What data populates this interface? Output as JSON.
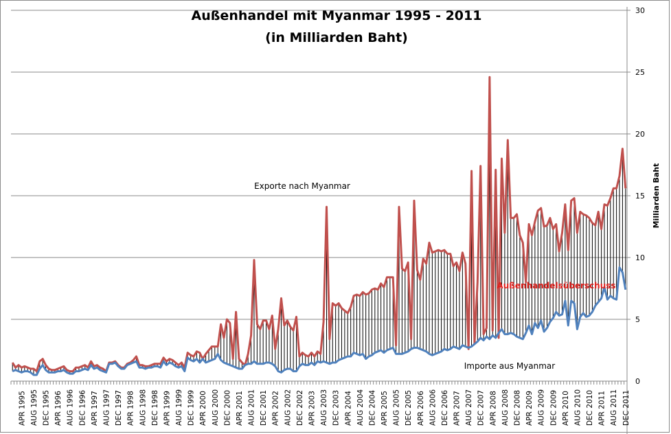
{
  "chart_data": {
    "type": "line",
    "title": "Außenhandel mit Myanmar 1995 - 2011",
    "subtitle": "(in Milliarden Baht)",
    "ylabel": "Milliarden Baht",
    "xlabel": "",
    "ylim": [
      0,
      30
    ],
    "yticks": [
      0,
      5,
      10,
      15,
      20,
      25,
      30
    ],
    "grid": true,
    "y_axis_side": "right",
    "x_start": "JAN 1995",
    "x_end": "DEC 2011",
    "tick_labels": [
      "APR 1995",
      "AUG 1995",
      "DEC 1995",
      "APR 1996",
      "AUG 1996",
      "DEC 1996",
      "APR 1997",
      "AUG 1997",
      "DEC 1997",
      "APR 1998",
      "AUG 1998",
      "DEC 1998",
      "APR 1999",
      "AUG 1999",
      "DEC 1999",
      "APR 2000",
      "AUG 2000",
      "DEC 2000",
      "APR 2001",
      "AUG 2001",
      "DEC 2001",
      "APR 2002",
      "AUG 2002",
      "DEC 2002",
      "APR 2003",
      "AUG 2003",
      "DEC 2003",
      "APR 2004",
      "AUG 2004",
      "DEC 2004",
      "APR 2005",
      "AUG 2005",
      "DEC 2005",
      "APR 2006",
      "AUG 2006",
      "DEC 2006",
      "APR 2007",
      "AUG 2007",
      "DEC 2007",
      "APR 2008",
      "AUG 2008",
      "DEC 2008",
      "APR 2009",
      "AUG 2009",
      "DEC 2009",
      "APR 2010",
      "AUG 2010",
      "DEC 2010",
      "APR 2011",
      "AUG 2011",
      "DEC 2011"
    ],
    "annotations": {
      "exports": "Exporte nach Myanmar",
      "surplus": "Außenhandelsüberschuss",
      "imports": "Importe aus Myanmar"
    },
    "series": [
      {
        "name": "Exporte nach Myanmar",
        "color": "#c0504d",
        "values": [
          1.5,
          1.1,
          1.3,
          1.1,
          1.2,
          1.1,
          1.0,
          1.0,
          0.8,
          1.6,
          1.8,
          1.3,
          1.0,
          0.9,
          0.9,
          1.0,
          1.1,
          1.2,
          0.9,
          0.8,
          0.8,
          1.1,
          1.1,
          1.2,
          1.3,
          1.1,
          1.6,
          1.2,
          1.3,
          1.1,
          1.0,
          0.8,
          1.5,
          1.5,
          1.6,
          1.3,
          1.1,
          1.1,
          1.4,
          1.5,
          1.7,
          2.0,
          1.3,
          1.3,
          1.2,
          1.2,
          1.3,
          1.4,
          1.4,
          1.4,
          1.9,
          1.6,
          1.8,
          1.7,
          1.5,
          1.3,
          1.5,
          1.1,
          2.3,
          2.1,
          2.0,
          2.4,
          2.3,
          1.8,
          2.2,
          2.5,
          2.8,
          2.8,
          2.8,
          4.6,
          3.5,
          5.0,
          4.7,
          1.8,
          5.6,
          1.8,
          1.5,
          1.3,
          2.2,
          3.7,
          9.8,
          4.6,
          4.2,
          4.9,
          4.9,
          4.2,
          5.3,
          2.6,
          4.2,
          6.7,
          4.5,
          4.9,
          4.4,
          4.1,
          5.2,
          2.0,
          2.3,
          2.1,
          2.0,
          2.3,
          2.0,
          2.4,
          2.2,
          4.8,
          14.1,
          3.4,
          6.3,
          6.1,
          6.3,
          5.9,
          5.7,
          5.5,
          6.0,
          6.9,
          7.0,
          6.9,
          7.2,
          7.0,
          7.1,
          7.4,
          7.5,
          7.4,
          7.9,
          7.6,
          8.4,
          8.4,
          8.4,
          2.9,
          14.1,
          9.1,
          8.9,
          9.6,
          3.4,
          14.6,
          9.0,
          8.2,
          9.9,
          9.5,
          11.2,
          10.4,
          10.5,
          10.6,
          10.5,
          10.6,
          10.3,
          10.3,
          9.3,
          9.6,
          8.9,
          10.4,
          9.5,
          2.6,
          17.0,
          3.0,
          8.0,
          17.4,
          3.8,
          4.3,
          24.6,
          4.1,
          17.1,
          3.5,
          18.0,
          12.0,
          19.5,
          13.2,
          13.2,
          13.5,
          11.8,
          11.2,
          8.0,
          12.7,
          11.8,
          12.9,
          13.8,
          14.0,
          12.5,
          12.6,
          13.2,
          12.3,
          12.7,
          10.5,
          12.0,
          14.3,
          10.6,
          14.6,
          14.8,
          12.0,
          13.7,
          13.5,
          13.4,
          13.2,
          12.8,
          12.6,
          13.7,
          12.3,
          14.3,
          14.2,
          14.8,
          15.6,
          15.6,
          16.6,
          18.8,
          15.6
        ]
      },
      {
        "name": "Importe aus Myanmar",
        "color": "#4f81bd",
        "values": [
          0.8,
          0.9,
          0.8,
          0.7,
          0.8,
          0.8,
          0.7,
          0.5,
          0.5,
          1.0,
          1.3,
          0.9,
          0.7,
          0.7,
          0.7,
          0.8,
          0.8,
          0.9,
          0.7,
          0.6,
          0.6,
          0.8,
          0.8,
          0.9,
          1.0,
          0.9,
          1.3,
          1.0,
          1.1,
          0.9,
          0.8,
          0.7,
          1.4,
          1.4,
          1.5,
          1.2,
          1.0,
          1.0,
          1.3,
          1.4,
          1.5,
          1.6,
          1.1,
          1.1,
          1.0,
          1.1,
          1.1,
          1.2,
          1.2,
          1.1,
          1.6,
          1.3,
          1.5,
          1.4,
          1.2,
          1.1,
          1.2,
          0.8,
          1.9,
          1.7,
          1.6,
          1.8,
          1.5,
          1.8,
          1.5,
          1.6,
          1.7,
          1.8,
          2.2,
          1.7,
          1.5,
          1.4,
          1.3,
          1.2,
          1.1,
          1.0,
          1.0,
          1.3,
          1.4,
          1.4,
          1.6,
          1.4,
          1.4,
          1.4,
          1.5,
          1.5,
          1.4,
          1.2,
          0.8,
          0.7,
          0.9,
          1.0,
          1.0,
          0.8,
          0.8,
          1.2,
          1.4,
          1.3,
          1.3,
          1.5,
          1.3,
          1.6,
          1.5,
          1.6,
          1.5,
          1.4,
          1.5,
          1.5,
          1.7,
          1.8,
          1.9,
          2.0,
          2.0,
          2.3,
          2.2,
          2.1,
          2.2,
          1.8,
          2.0,
          2.1,
          2.3,
          2.4,
          2.5,
          2.3,
          2.5,
          2.6,
          2.7,
          2.2,
          2.2,
          2.2,
          2.3,
          2.4,
          2.6,
          2.7,
          2.7,
          2.6,
          2.5,
          2.4,
          2.2,
          2.1,
          2.2,
          2.3,
          2.4,
          2.6,
          2.5,
          2.6,
          2.8,
          2.7,
          2.6,
          2.9,
          2.8,
          2.7,
          2.8,
          3.0,
          3.2,
          3.5,
          3.3,
          3.6,
          3.4,
          3.7,
          3.5,
          3.9,
          4.2,
          3.8,
          3.8,
          3.9,
          3.8,
          3.6,
          3.5,
          3.4,
          3.9,
          4.5,
          3.8,
          4.7,
          4.3,
          4.9,
          4.0,
          4.3,
          4.8,
          5.1,
          5.6,
          5.3,
          5.4,
          6.5,
          4.5,
          6.5,
          6.3,
          4.2,
          5.2,
          5.5,
          5.2,
          5.3,
          5.6,
          6.1,
          6.4,
          6.7,
          7.6,
          6.6,
          6.9,
          6.7,
          6.6,
          9.2,
          8.8,
          7.4
        ]
      }
    ]
  }
}
